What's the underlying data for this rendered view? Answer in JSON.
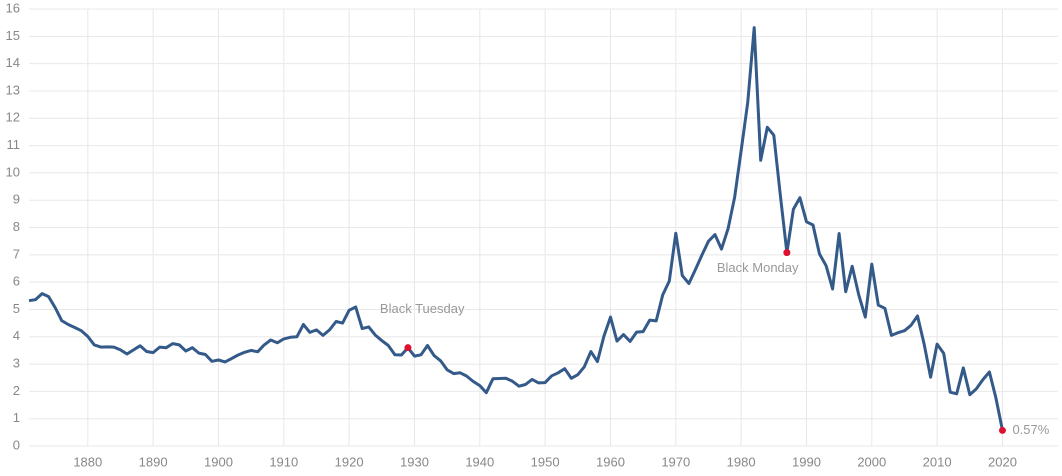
{
  "chart_data": {
    "type": "line",
    "x": [
      1871,
      1872,
      1873,
      1874,
      1875,
      1876,
      1877,
      1878,
      1879,
      1880,
      1881,
      1882,
      1883,
      1884,
      1885,
      1886,
      1887,
      1888,
      1889,
      1890,
      1891,
      1892,
      1893,
      1894,
      1895,
      1896,
      1897,
      1898,
      1899,
      1900,
      1901,
      1902,
      1903,
      1904,
      1905,
      1906,
      1907,
      1908,
      1909,
      1910,
      1911,
      1912,
      1913,
      1914,
      1915,
      1916,
      1917,
      1918,
      1919,
      1920,
      1921,
      1922,
      1923,
      1924,
      1925,
      1926,
      1927,
      1928,
      1929,
      1930,
      1931,
      1932,
      1933,
      1934,
      1935,
      1936,
      1937,
      1938,
      1939,
      1940,
      1941,
      1942,
      1943,
      1944,
      1945,
      1946,
      1947,
      1948,
      1949,
      1950,
      1951,
      1952,
      1953,
      1954,
      1955,
      1956,
      1957,
      1958,
      1959,
      1960,
      1961,
      1962,
      1963,
      1964,
      1965,
      1966,
      1967,
      1968,
      1969,
      1970,
      1971,
      1972,
      1973,
      1974,
      1975,
      1976,
      1977,
      1978,
      1979,
      1980,
      1981,
      1982,
      1983,
      1984,
      1985,
      1986,
      1987,
      1988,
      1989,
      1990,
      1991,
      1992,
      1993,
      1994,
      1995,
      1996,
      1997,
      1998,
      1999,
      2000,
      2001,
      2002,
      2003,
      2004,
      2005,
      2006,
      2007,
      2008,
      2009,
      2010,
      2011,
      2012,
      2013,
      2014,
      2015,
      2016,
      2017,
      2018,
      2019,
      2020
    ],
    "series": [
      {
        "color": "#345a8a",
        "values": [
          5.32,
          5.36,
          5.58,
          5.47,
          5.07,
          4.59,
          4.45,
          4.34,
          4.22,
          4.01,
          3.7,
          3.62,
          3.63,
          3.62,
          3.52,
          3.37,
          3.52,
          3.67,
          3.46,
          3.42,
          3.62,
          3.6,
          3.75,
          3.7,
          3.48,
          3.6,
          3.4,
          3.35,
          3.1,
          3.15,
          3.08,
          3.2,
          3.33,
          3.43,
          3.5,
          3.45,
          3.7,
          3.88,
          3.78,
          3.92,
          3.98,
          4.0,
          4.45,
          4.16,
          4.25,
          4.05,
          4.25,
          4.56,
          4.5,
          4.97,
          5.09,
          4.3,
          4.36,
          4.06,
          3.86,
          3.68,
          3.34,
          3.33,
          3.6,
          3.29,
          3.34,
          3.68,
          3.31,
          3.12,
          2.79,
          2.65,
          2.68,
          2.56,
          2.36,
          2.21,
          1.95,
          2.46,
          2.47,
          2.48,
          2.37,
          2.19,
          2.25,
          2.44,
          2.31,
          2.32,
          2.57,
          2.68,
          2.83,
          2.48,
          2.61,
          2.9,
          3.46,
          3.09,
          4.02,
          4.72,
          3.84,
          4.08,
          3.83,
          4.17,
          4.19,
          4.61,
          4.58,
          5.53,
          6.04,
          7.79,
          6.24,
          5.95,
          6.46,
          6.99,
          7.5,
          7.74,
          7.21,
          7.96,
          9.1,
          10.8,
          12.57,
          15.32,
          10.46,
          11.67,
          11.38,
          9.19,
          7.08,
          8.67,
          9.09,
          8.21,
          8.09,
          7.03,
          6.6,
          5.75,
          7.78,
          5.65,
          6.58,
          5.54,
          4.72,
          6.66,
          5.16,
          5.04,
          4.05,
          4.15,
          4.22,
          4.42,
          4.76,
          3.74,
          2.52,
          3.73,
          3.39,
          1.97,
          1.91,
          2.86,
          1.88,
          2.09,
          2.43,
          2.71,
          1.76,
          0.57
        ]
      }
    ],
    "annotations": [
      {
        "text": "Black Tuesday",
        "x": 1929,
        "y": 3.6,
        "color": "#e0102f"
      },
      {
        "text": "Black Monday",
        "x": 1987,
        "y": 7.08,
        "color": "#e0102f"
      },
      {
        "text": "0.57%",
        "x": 2020,
        "y": 0.57,
        "color": "#e0102f"
      }
    ],
    "xlim": [
      1871,
      2028.5
    ],
    "ylim": [
      0,
      16
    ],
    "xticks": [
      1880,
      1890,
      1900,
      1910,
      1920,
      1930,
      1940,
      1950,
      1960,
      1970,
      1980,
      1990,
      2000,
      2010,
      2020
    ],
    "yticks": [
      0,
      1,
      2,
      3,
      4,
      5,
      6,
      7,
      8,
      9,
      10,
      11,
      12,
      13,
      14,
      15,
      16
    ],
    "grid": true
  }
}
